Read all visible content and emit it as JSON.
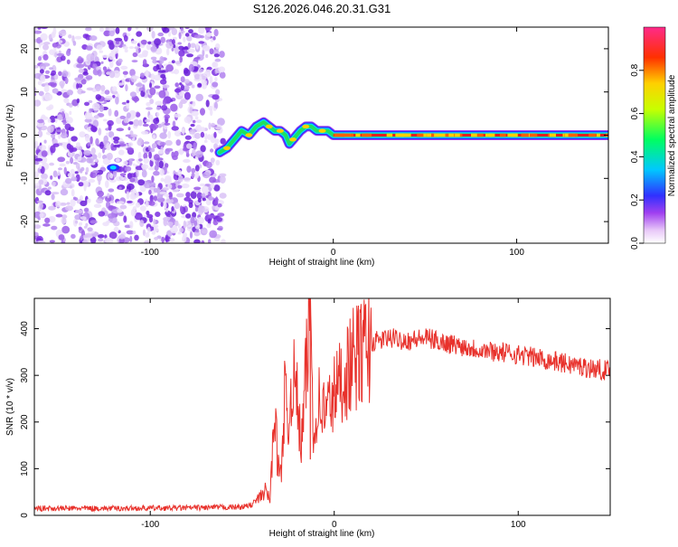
{
  "page": {
    "title": "S126.2026.046.20.31.G31"
  },
  "colors": {
    "snr_line": "#e8322c",
    "scatter": "#8a2be2",
    "axis": "#000000"
  },
  "chart_data": [
    {
      "type": "heatmap",
      "title": "S126.2026.046.20.31.G31",
      "xlabel": "Height of straight line (km)",
      "ylabel": "Frequency (Hz)",
      "xlim": [
        -163,
        150
      ],
      "ylim": [
        -25,
        25
      ],
      "xticks": [
        -100,
        0,
        100
      ],
      "yticks": [
        -20,
        -10,
        0,
        10,
        20
      ],
      "noise_region_x": [
        -163,
        -60
      ],
      "track": {
        "x": [
          -62,
          -58,
          -54,
          -50,
          -46,
          -42,
          -38,
          -35,
          -32,
          -29,
          -26,
          -24,
          -22,
          -20,
          -18,
          -15,
          -12,
          -9,
          -6,
          -3,
          0,
          10,
          30,
          60,
          90,
          120,
          150
        ],
        "y": [
          -4,
          -3,
          -1,
          1,
          0,
          2,
          3,
          2,
          1,
          1,
          0,
          -2,
          -1,
          0,
          1,
          2,
          2,
          1,
          1,
          1,
          0,
          0,
          0,
          0,
          0,
          0,
          0
        ]
      },
      "colorbar": {
        "label": "Normalized spectral amplitude",
        "range": [
          0,
          1
        ],
        "ticks": [
          "0.0",
          "0.2",
          "0.4",
          "0.6",
          "0.8"
        ]
      }
    },
    {
      "type": "line",
      "xlabel": "Height of straight line (km)",
      "ylabel": "SNR (10 * v/v)",
      "xlim": [
        -163,
        150
      ],
      "ylim": [
        0,
        465
      ],
      "xticks": [
        -100,
        0,
        100
      ],
      "yticks": [
        0,
        100,
        200,
        300,
        400
      ],
      "series": [
        {
          "name": "SNR",
          "x": [
            -163,
            -120,
            -80,
            -50,
            -45,
            -40,
            -37,
            -35,
            -33,
            -32,
            -31,
            -29,
            -27,
            -25,
            -23,
            -20,
            -18,
            -15,
            -13,
            -11,
            -9,
            -5,
            0,
            5,
            10,
            20,
            30,
            40,
            50,
            60,
            80,
            100,
            120,
            140,
            150
          ],
          "y": [
            15,
            15,
            16,
            18,
            22,
            40,
            55,
            30,
            180,
            250,
            120,
            80,
            260,
            180,
            300,
            250,
            140,
            320,
            460,
            150,
            250,
            220,
            260,
            300,
            330,
            370,
            380,
            375,
            380,
            370,
            355,
            345,
            330,
            315,
            310
          ]
        }
      ]
    }
  ]
}
